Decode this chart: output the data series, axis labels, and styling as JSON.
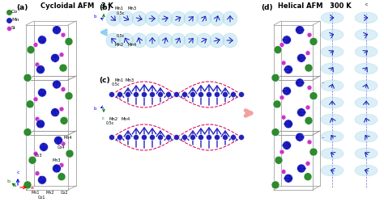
{
  "title_left": "Cycloidal AFM   3 K",
  "title_right": "Helical AFM   300 K",
  "label_a": "(a)",
  "label_b": "(b)",
  "label_c": "(c)",
  "label_d": "(d)",
  "color_co": "#2e8b2e",
  "color_mn": "#2222bb",
  "color_si": "#cc33cc",
  "color_box": "#999999",
  "color_ellipse_fill": "#b8e0f0",
  "color_arrow": "#1111bb",
  "color_dashed": "#dd0055",
  "color_pink_arrow": "#f4a0a0",
  "bg": "#ffffff"
}
